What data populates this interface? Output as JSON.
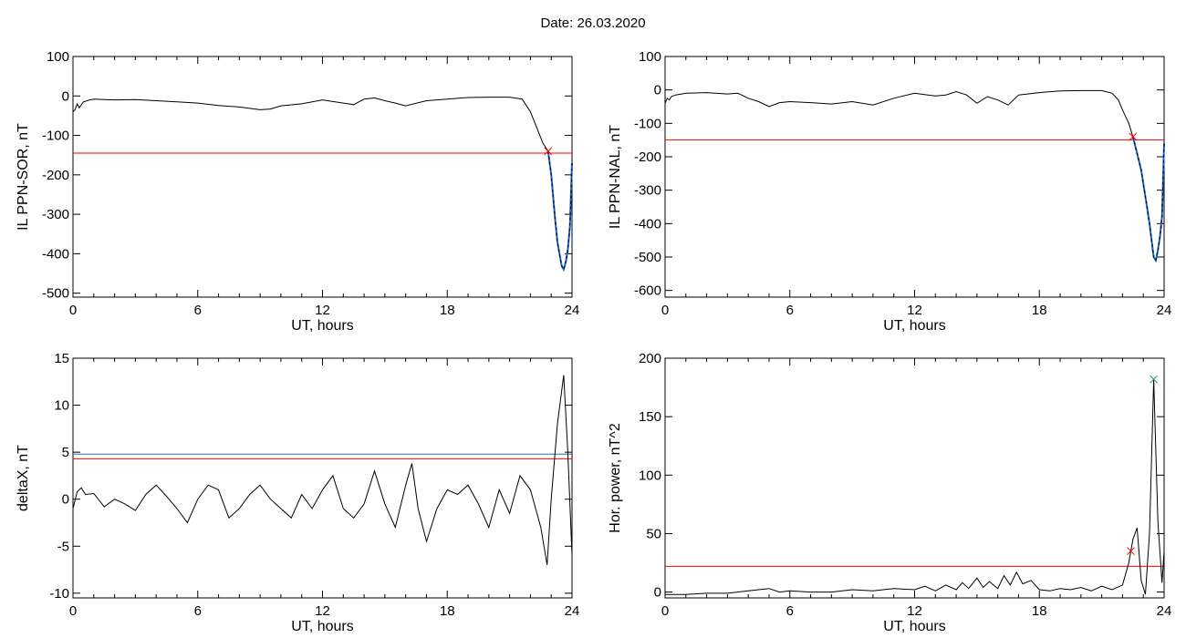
{
  "header": {
    "date_label": "Date:",
    "date_value": "26.03.2020"
  },
  "colors": {
    "data": "#000000",
    "threshold_red": "#ff0000",
    "threshold_blue": "#1f77b4",
    "segment_blue": "#1e64c8",
    "marker_red": "#c81e1e",
    "marker_teal": "#1e9696"
  },
  "chart_data": [
    {
      "type": "line",
      "xlabel": "UT, hours",
      "ylabel": "IL PPN-SOR, nT",
      "xlim": [
        0,
        24
      ],
      "ylim": [
        -510,
        100
      ],
      "xticks": [
        0,
        6,
        12,
        18,
        24
      ],
      "yticks": [
        100,
        0,
        -100,
        -200,
        -300,
        -400,
        -500
      ],
      "series": [
        {
          "x": [
            0,
            0.1,
            0.2,
            0.3,
            0.5,
            0.8,
            1,
            1.5,
            2,
            3,
            4,
            5,
            6,
            7,
            8,
            9,
            9.5,
            10,
            11,
            12,
            13,
            13.5,
            14,
            14.5,
            15,
            15.5,
            16,
            17,
            18,
            19,
            20,
            21,
            21.6,
            22,
            22.3,
            22.6,
            22.85
          ],
          "y": [
            -40,
            -35,
            -20,
            -30,
            -15,
            -10,
            -8,
            -9,
            -10,
            -9,
            -12,
            -15,
            -18,
            -24,
            -28,
            -35,
            -33,
            -25,
            -20,
            -10,
            -18,
            -22,
            -8,
            -5,
            -12,
            -18,
            -25,
            -12,
            -8,
            -4,
            -3,
            -3,
            -8,
            -40,
            -80,
            -120,
            -140
          ]
        },
        {
          "x": [
            22.85,
            23.0,
            23.1,
            23.2,
            23.3,
            23.4,
            23.5,
            23.6,
            23.7,
            23.8,
            23.9,
            24.0
          ],
          "y": [
            -140,
            -200,
            -260,
            -320,
            -370,
            -400,
            -430,
            -440,
            -420,
            -390,
            -330,
            -170
          ]
        }
      ],
      "threshold_lines": [
        {
          "y": -145,
          "color": "red"
        }
      ],
      "markers": [
        {
          "x": 22.85,
          "y": -140,
          "symbol": "x",
          "color": "red"
        }
      ]
    },
    {
      "type": "line",
      "xlabel": "UT, hours",
      "ylabel": "IL PPN-NAL, nT",
      "xlim": [
        0,
        24
      ],
      "ylim": [
        -620,
        100
      ],
      "xticks": [
        0,
        6,
        12,
        18,
        24
      ],
      "yticks": [
        100,
        0,
        -100,
        -200,
        -300,
        -400,
        -500,
        -600
      ],
      "series": [
        {
          "x": [
            0,
            0.1,
            0.2,
            0.3,
            0.5,
            0.8,
            1,
            2,
            3,
            3.5,
            4,
            4.5,
            5,
            5.5,
            6,
            7,
            8,
            9,
            10,
            11,
            12,
            13,
            13.5,
            14,
            14.5,
            15,
            15.5,
            16,
            16.5,
            17,
            18,
            19,
            20,
            21,
            21.5,
            21.8,
            22,
            22.3,
            22.5
          ],
          "y": [
            -40,
            -25,
            -30,
            -20,
            -15,
            -12,
            -10,
            -8,
            -12,
            -10,
            -25,
            -35,
            -50,
            -38,
            -35,
            -38,
            -42,
            -35,
            -45,
            -25,
            -10,
            -18,
            -15,
            -5,
            -15,
            -40,
            -20,
            -30,
            -45,
            -15,
            -8,
            -3,
            -2,
            -2,
            -10,
            -30,
            -60,
            -100,
            -140
          ]
        },
        {
          "x": [
            22.5,
            22.7,
            22.9,
            23.0,
            23.1,
            23.2,
            23.3,
            23.4,
            23.5,
            23.6,
            23.7,
            23.8,
            23.9,
            24.0
          ],
          "y": [
            -140,
            -190,
            -240,
            -280,
            -320,
            -360,
            -400,
            -450,
            -500,
            -510,
            -480,
            -440,
            -380,
            -160
          ]
        }
      ],
      "threshold_lines": [
        {
          "y": -150,
          "color": "red"
        }
      ],
      "markers": [
        {
          "x": 22.5,
          "y": -140,
          "symbol": "x",
          "color": "red"
        }
      ]
    },
    {
      "type": "line",
      "xlabel": "UT, hours",
      "ylabel": "deltaX, nT",
      "xlim": [
        0,
        24
      ],
      "ylim": [
        -10.5,
        15
      ],
      "xticks": [
        0,
        6,
        12,
        18,
        24
      ],
      "yticks": [
        15,
        10,
        5,
        0,
        -5,
        -10
      ],
      "series": [
        {
          "x": [
            0,
            0.2,
            0.4,
            0.6,
            1,
            1.5,
            2,
            2.5,
            3,
            3.5,
            4,
            4.5,
            5,
            5.5,
            6,
            6.5,
            7,
            7.5,
            8,
            8.5,
            9,
            9.5,
            10,
            10.5,
            11,
            11.5,
            12,
            12.5,
            13,
            13.5,
            14,
            14.5,
            15,
            15.5,
            16,
            16.3,
            16.6,
            17,
            17.5,
            18,
            18.5,
            19,
            19.5,
            20,
            20.5,
            21,
            21.5,
            22,
            22.5,
            22.8,
            23,
            23.3,
            23.6,
            23.8,
            24.0
          ],
          "y": [
            -1,
            0.8,
            1.2,
            0.5,
            0.6,
            -0.8,
            0,
            -0.5,
            -1.2,
            0.5,
            1.5,
            0.3,
            -1,
            -2.5,
            0,
            1.5,
            1,
            -2,
            -1,
            0.5,
            1.5,
            0,
            -1,
            -2,
            0.5,
            -1,
            1,
            2.5,
            -1,
            -2,
            -0.5,
            3,
            -0.5,
            -3,
            1.5,
            3.8,
            -1,
            -4.5,
            -1,
            1,
            0.5,
            1.5,
            -0.5,
            -3,
            1,
            -1.5,
            2.5,
            1,
            -3,
            -7,
            0,
            8,
            13.2,
            5,
            -6
          ]
        }
      ],
      "threshold_lines": [
        {
          "y": 4.8,
          "color": "blue"
        },
        {
          "y": 4.3,
          "color": "red"
        }
      ],
      "markers": []
    },
    {
      "type": "line",
      "xlabel": "UT, hours",
      "ylabel": "Hor. power, nT^2",
      "xlim": [
        0,
        24
      ],
      "ylim": [
        -5,
        200
      ],
      "xticks": [
        0,
        6,
        12,
        18,
        24
      ],
      "yticks": [
        200,
        150,
        100,
        50,
        0
      ],
      "series": [
        {
          "x": [
            0,
            1,
            2,
            3,
            4,
            5,
            5.5,
            6,
            7,
            8,
            9,
            10,
            11,
            12,
            12.5,
            13,
            13.5,
            14,
            14.3,
            14.6,
            15,
            15.3,
            15.6,
            16,
            16.3,
            16.6,
            16.9,
            17.2,
            17.6,
            18,
            18.5,
            19,
            19.5,
            20,
            20.5,
            21,
            21.5,
            22,
            22.3,
            22.5,
            22.7,
            22.9,
            23.1,
            23.3,
            23.5,
            23.7,
            23.9,
            24.0
          ],
          "y": [
            -2,
            -2,
            -1,
            -1,
            1,
            3,
            0,
            1,
            0,
            0,
            2,
            1,
            3,
            2,
            5,
            1,
            6,
            2,
            8,
            3,
            12,
            4,
            9,
            3,
            14,
            6,
            17,
            7,
            10,
            2,
            1,
            3,
            2,
            4,
            1,
            5,
            2,
            6,
            25,
            45,
            55,
            10,
            -2,
            50,
            182,
            60,
            8,
            35
          ]
        }
      ],
      "threshold_lines": [
        {
          "y": 22,
          "color": "red"
        }
      ],
      "markers": [
        {
          "x": 22.4,
          "y": 35,
          "symbol": "x",
          "color": "red"
        },
        {
          "x": 23.5,
          "y": 182,
          "symbol": "x",
          "color": "teal"
        }
      ]
    }
  ]
}
